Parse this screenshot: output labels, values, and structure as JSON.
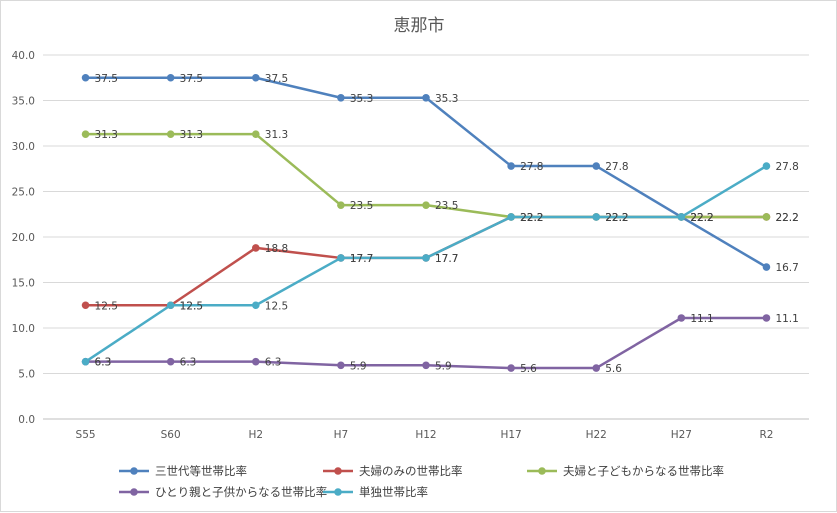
{
  "chart_data": {
    "type": "line",
    "title": "恵那市",
    "xlabel": "",
    "ylabel": "",
    "categories": [
      "S55",
      "S60",
      "H2",
      "H7",
      "H12",
      "H17",
      "H22",
      "H27",
      "R2"
    ],
    "ylim": [
      0,
      40
    ],
    "yticks": [
      "0.0",
      "5.0",
      "10.0",
      "15.0",
      "20.0",
      "25.0",
      "30.0",
      "35.0",
      "40.0"
    ],
    "grid": true,
    "legend_position": "bottom",
    "series": [
      {
        "name": "三世代等世帯比率",
        "color": "#4F81BD",
        "values": [
          37.5,
          37.5,
          37.5,
          35.3,
          35.3,
          27.8,
          27.8,
          22.2,
          16.7
        ],
        "labels": [
          "37.5",
          "37.5",
          "37.5",
          "35.3",
          "35.3",
          "27.8",
          "27.8",
          "22.2",
          "16.7"
        ]
      },
      {
        "name": "夫婦のみの世帯比率",
        "color": "#C0504D",
        "values": [
          12.5,
          12.5,
          18.8,
          17.7,
          17.7,
          22.2,
          22.2,
          22.2,
          22.2
        ],
        "labels": [
          "12.5",
          "12.5",
          "18.8",
          "17.7",
          "17.7",
          "22.2",
          "22.2",
          "22.2",
          "22.2"
        ]
      },
      {
        "name": "夫婦と子どもからなる世帯比率",
        "color": "#9BBB59",
        "values": [
          31.3,
          31.3,
          31.3,
          23.5,
          23.5,
          22.2,
          22.2,
          22.2,
          22.2
        ],
        "labels": [
          "31.3",
          "31.3",
          "31.3",
          "23.5",
          "23.5",
          "22.2",
          "22.2",
          "22.2",
          "22.2"
        ]
      },
      {
        "name": "ひとり親と子供からなる世帯比率",
        "color": "#8064A2",
        "values": [
          6.3,
          6.3,
          6.3,
          5.9,
          5.9,
          5.6,
          5.6,
          11.1,
          11.1
        ],
        "labels": [
          "6.3",
          "6.3",
          "6.3",
          "5.9",
          "5.9",
          "5.6",
          "5.6",
          "11.1",
          "11.1"
        ]
      },
      {
        "name": "単独世帯比率",
        "color": "#4BACC6",
        "values": [
          6.3,
          12.5,
          12.5,
          17.7,
          17.7,
          22.2,
          22.2,
          22.2,
          27.8
        ],
        "labels": [
          "6.3",
          "12.5",
          "12.5",
          "17.7",
          "17.7",
          "22.2",
          "22.2",
          "22.2",
          "27.8"
        ]
      }
    ]
  }
}
